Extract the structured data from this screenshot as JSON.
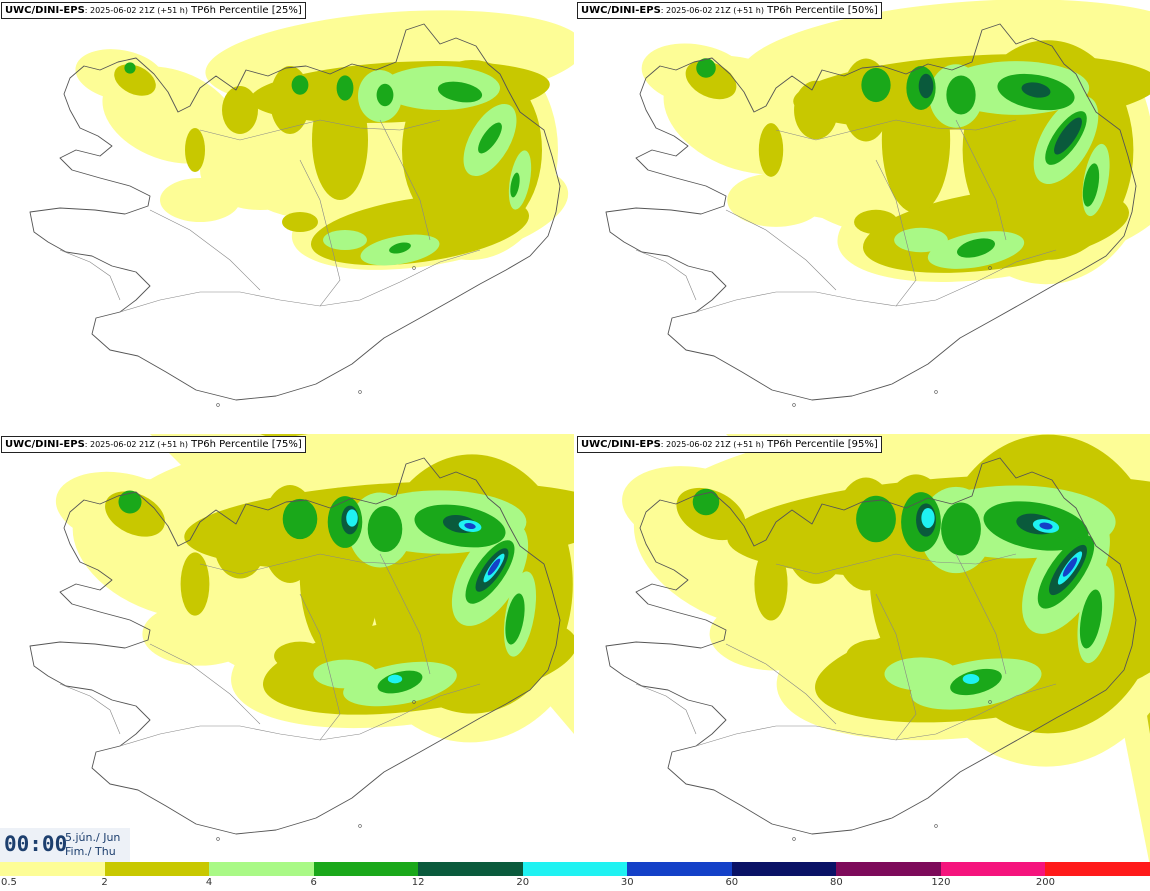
{
  "panels": [
    {
      "model": "UWC/DINI-EPS",
      "run": ": 2025-06-02 21Z (+51 h)",
      "label": " TP6h Percentile [25%]",
      "intensity": 0
    },
    {
      "model": "UWC/DINI-EPS",
      "run": ": 2025-06-02 21Z (+51 h)",
      "label": " TP6h Percentile [50%]",
      "intensity": 1
    },
    {
      "model": "UWC/DINI-EPS",
      "run": ": 2025-06-02 21Z (+51 h)",
      "label": " TP6h Percentile [75%]",
      "intensity": 2
    },
    {
      "model": "UWC/DINI-EPS",
      "run": ": 2025-06-02 21Z (+51 h)",
      "label": " TP6h Percentile [95%]",
      "intensity": 3
    }
  ],
  "time": {
    "clock": "00:00",
    "date_line1": "5.jún./ Jun",
    "date_line2": "Fim./ Thu"
  },
  "legend": {
    "labels": [
      "0.5",
      "2",
      "4",
      "6",
      "12",
      "20",
      "30",
      "60",
      "80",
      "120",
      "200"
    ],
    "colors": [
      "#fdfd96",
      "#c8c800",
      "#a9f986",
      "#1aa81a",
      "#0a5a3c",
      "#1ff2f2",
      "#1441c8",
      "#0a1266",
      "#7d0a5a",
      "#f5147d",
      "#ff1a1a"
    ]
  }
}
